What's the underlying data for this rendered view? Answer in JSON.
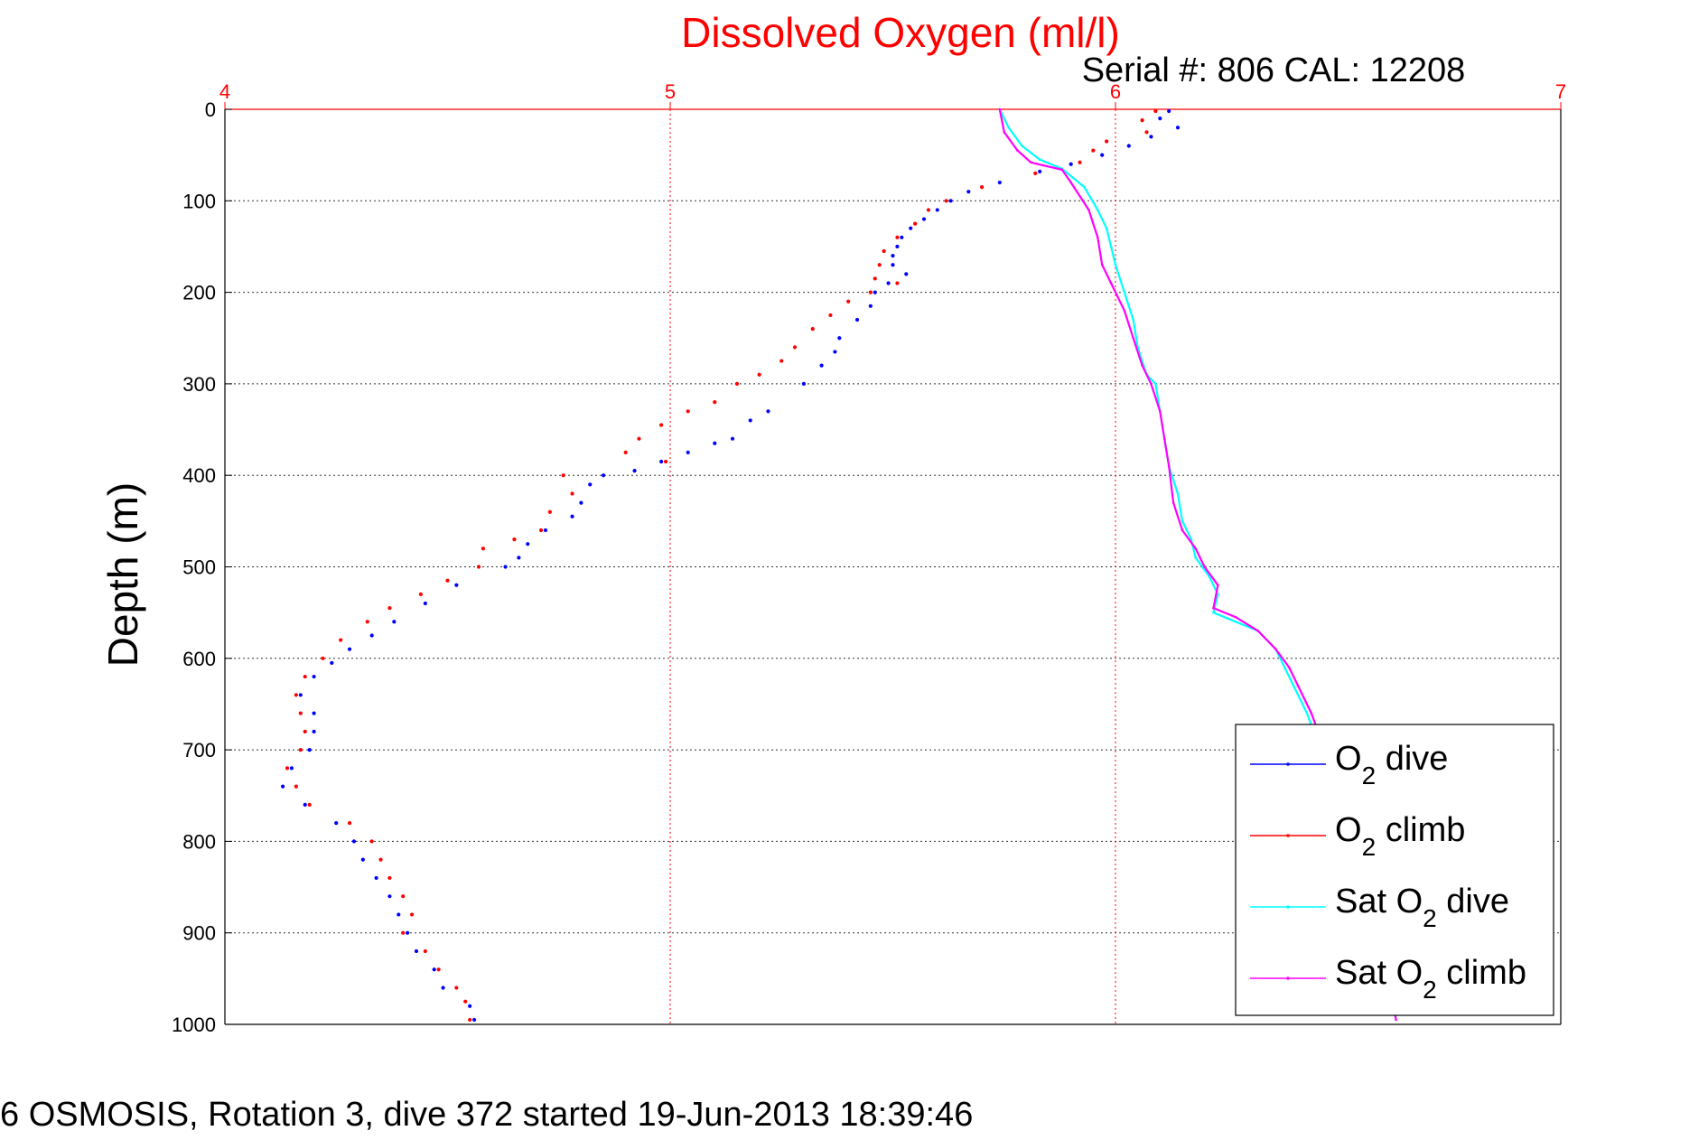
{
  "figure": {
    "title": "Dissolved Oxygen (ml/l)",
    "subtitle": "Serial #: 806  CAL: 12208",
    "footer": "6 OSMOSIS, Rotation 3, dive 372 started 19-Jun-2013 18:39:46",
    "ylabel": "Depth (m)"
  },
  "colors": {
    "title": "#ff0000",
    "top_axis": "#ff0000",
    "axis": "#000000",
    "o2_dive": "#0000ff",
    "o2_climb": "#ff0000",
    "sat_dive": "#00ffff",
    "sat_climb": "#ff00ff"
  },
  "chart_data": {
    "type": "scatter",
    "x_axis_position": "top",
    "y_axis_reversed": true,
    "xlim": [
      4,
      7
    ],
    "ylim": [
      0,
      1000
    ],
    "xticks": [
      "4",
      "5",
      "6",
      "7"
    ],
    "yticks": [
      "0",
      "100",
      "200",
      "300",
      "400",
      "500",
      "600",
      "700",
      "800",
      "900",
      "1000"
    ],
    "grid": true,
    "legend_position": "lower-right",
    "legend": [
      {
        "key": "o2_dive",
        "label": "O",
        "sub": "2",
        "rest": " dive"
      },
      {
        "key": "o2_climb",
        "label": "O",
        "sub": "2",
        "rest": " climb"
      },
      {
        "key": "sat_dive",
        "label": "Sat O",
        "sub": "2",
        "rest": " dive"
      },
      {
        "key": "sat_climb",
        "label": "Sat O",
        "sub": "2",
        "rest": " climb"
      }
    ],
    "series": [
      {
        "key": "o2_dive",
        "marker": "dots",
        "points": [
          [
            6.12,
            2
          ],
          [
            6.1,
            10
          ],
          [
            6.14,
            20
          ],
          [
            6.08,
            30
          ],
          [
            6.03,
            40
          ],
          [
            5.97,
            50
          ],
          [
            5.9,
            60
          ],
          [
            5.83,
            68
          ],
          [
            5.74,
            80
          ],
          [
            5.67,
            90
          ],
          [
            5.63,
            100
          ],
          [
            5.6,
            110
          ],
          [
            5.57,
            120
          ],
          [
            5.54,
            130
          ],
          [
            5.52,
            140
          ],
          [
            5.51,
            150
          ],
          [
            5.5,
            160
          ],
          [
            5.5,
            170
          ],
          [
            5.53,
            180
          ],
          [
            5.49,
            190
          ],
          [
            5.46,
            200
          ],
          [
            5.45,
            215
          ],
          [
            5.42,
            230
          ],
          [
            5.38,
            250
          ],
          [
            5.37,
            265
          ],
          [
            5.34,
            280
          ],
          [
            5.3,
            300
          ],
          [
            5.22,
            330
          ],
          [
            5.18,
            340
          ],
          [
            5.14,
            360
          ],
          [
            5.1,
            365
          ],
          [
            5.04,
            375
          ],
          [
            4.98,
            385
          ],
          [
            4.92,
            395
          ],
          [
            4.85,
            400
          ],
          [
            4.82,
            410
          ],
          [
            4.8,
            430
          ],
          [
            4.78,
            445
          ],
          [
            4.72,
            460
          ],
          [
            4.68,
            475
          ],
          [
            4.66,
            490
          ],
          [
            4.63,
            500
          ],
          [
            4.52,
            520
          ],
          [
            4.45,
            540
          ],
          [
            4.38,
            560
          ],
          [
            4.33,
            575
          ],
          [
            4.28,
            590
          ],
          [
            4.24,
            605
          ],
          [
            4.2,
            620
          ],
          [
            4.17,
            640
          ],
          [
            4.2,
            660
          ],
          [
            4.2,
            680
          ],
          [
            4.19,
            700
          ],
          [
            4.15,
            720
          ],
          [
            4.13,
            740
          ],
          [
            4.18,
            760
          ],
          [
            4.25,
            780
          ],
          [
            4.29,
            800
          ],
          [
            4.31,
            820
          ],
          [
            4.34,
            840
          ],
          [
            4.37,
            860
          ],
          [
            4.39,
            880
          ],
          [
            4.41,
            900
          ],
          [
            4.43,
            920
          ],
          [
            4.47,
            940
          ],
          [
            4.49,
            960
          ],
          [
            4.55,
            980
          ],
          [
            4.56,
            995
          ]
        ]
      },
      {
        "key": "o2_climb",
        "marker": "dots",
        "points": [
          [
            6.09,
            2
          ],
          [
            6.06,
            12
          ],
          [
            6.07,
            25
          ],
          [
            5.98,
            35
          ],
          [
            5.95,
            45
          ],
          [
            5.92,
            58
          ],
          [
            5.82,
            70
          ],
          [
            5.7,
            85
          ],
          [
            5.62,
            100
          ],
          [
            5.58,
            110
          ],
          [
            5.55,
            125
          ],
          [
            5.51,
            140
          ],
          [
            5.48,
            155
          ],
          [
            5.47,
            170
          ],
          [
            5.46,
            185
          ],
          [
            5.51,
            190
          ],
          [
            5.45,
            200
          ],
          [
            5.4,
            210
          ],
          [
            5.36,
            225
          ],
          [
            5.32,
            240
          ],
          [
            5.28,
            260
          ],
          [
            5.25,
            275
          ],
          [
            5.2,
            290
          ],
          [
            5.15,
            300
          ],
          [
            5.1,
            320
          ],
          [
            5.04,
            330
          ],
          [
            4.98,
            345
          ],
          [
            4.93,
            360
          ],
          [
            4.9,
            375
          ],
          [
            4.99,
            385
          ],
          [
            4.76,
            400
          ],
          [
            4.78,
            420
          ],
          [
            4.73,
            440
          ],
          [
            4.71,
            460
          ],
          [
            4.65,
            470
          ],
          [
            4.58,
            480
          ],
          [
            4.57,
            500
          ],
          [
            4.5,
            515
          ],
          [
            4.44,
            530
          ],
          [
            4.37,
            545
          ],
          [
            4.32,
            560
          ],
          [
            4.26,
            580
          ],
          [
            4.22,
            600
          ],
          [
            4.18,
            620
          ],
          [
            4.16,
            640
          ],
          [
            4.17,
            660
          ],
          [
            4.18,
            680
          ],
          [
            4.17,
            700
          ],
          [
            4.14,
            720
          ],
          [
            4.16,
            740
          ],
          [
            4.19,
            760
          ],
          [
            4.28,
            780
          ],
          [
            4.33,
            800
          ],
          [
            4.35,
            820
          ],
          [
            4.37,
            840
          ],
          [
            4.4,
            860
          ],
          [
            4.42,
            880
          ],
          [
            4.4,
            900
          ],
          [
            4.45,
            920
          ],
          [
            4.48,
            940
          ],
          [
            4.52,
            960
          ],
          [
            4.54,
            975
          ],
          [
            4.55,
            995
          ]
        ]
      },
      {
        "key": "sat_dive",
        "marker": "line",
        "points": [
          [
            5.74,
            0
          ],
          [
            5.76,
            20
          ],
          [
            5.79,
            40
          ],
          [
            5.83,
            55
          ],
          [
            5.88,
            65
          ],
          [
            5.93,
            85
          ],
          [
            5.96,
            110
          ],
          [
            5.98,
            130
          ],
          [
            5.99,
            150
          ],
          [
            6.0,
            170
          ],
          [
            6.02,
            200
          ],
          [
            6.04,
            230
          ],
          [
            6.05,
            260
          ],
          [
            6.07,
            290
          ],
          [
            6.09,
            300
          ],
          [
            6.1,
            330
          ],
          [
            6.11,
            360
          ],
          [
            6.12,
            390
          ],
          [
            6.14,
            420
          ],
          [
            6.15,
            450
          ],
          [
            6.17,
            470
          ],
          [
            6.18,
            490
          ],
          [
            6.21,
            510
          ],
          [
            6.23,
            530
          ],
          [
            6.22,
            550
          ],
          [
            6.27,
            560
          ],
          [
            6.32,
            570
          ],
          [
            6.36,
            590
          ],
          [
            6.38,
            610
          ],
          [
            6.4,
            630
          ],
          [
            6.43,
            660
          ],
          [
            6.46,
            700
          ],
          [
            6.5,
            760
          ],
          [
            6.55,
            840
          ],
          [
            6.6,
            920
          ],
          [
            6.63,
            990
          ]
        ]
      },
      {
        "key": "sat_climb",
        "marker": "line",
        "points": [
          [
            5.74,
            0
          ],
          [
            5.75,
            25
          ],
          [
            5.78,
            45
          ],
          [
            5.81,
            58
          ],
          [
            5.88,
            66
          ],
          [
            5.9,
            80
          ],
          [
            5.94,
            110
          ],
          [
            5.96,
            140
          ],
          [
            5.97,
            170
          ],
          [
            5.99,
            190
          ],
          [
            6.02,
            220
          ],
          [
            6.04,
            250
          ],
          [
            6.06,
            280
          ],
          [
            6.08,
            300
          ],
          [
            6.1,
            330
          ],
          [
            6.11,
            360
          ],
          [
            6.12,
            390
          ],
          [
            6.13,
            430
          ],
          [
            6.15,
            460
          ],
          [
            6.18,
            480
          ],
          [
            6.2,
            500
          ],
          [
            6.23,
            520
          ],
          [
            6.22,
            545
          ],
          [
            6.27,
            555
          ],
          [
            6.32,
            570
          ],
          [
            6.36,
            590
          ],
          [
            6.39,
            610
          ],
          [
            6.41,
            630
          ],
          [
            6.44,
            660
          ],
          [
            6.47,
            700
          ],
          [
            6.51,
            760
          ],
          [
            6.56,
            840
          ],
          [
            6.6,
            920
          ],
          [
            6.63,
            995
          ]
        ]
      }
    ]
  }
}
